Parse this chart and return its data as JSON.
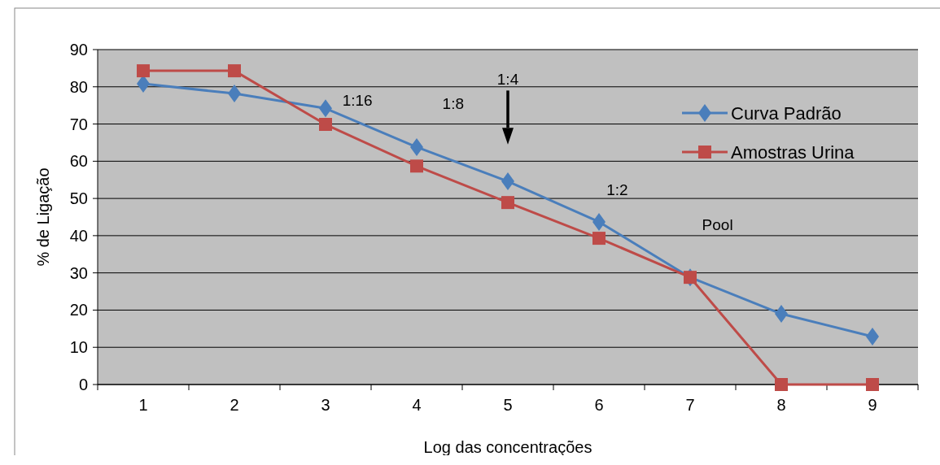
{
  "chart_data": {
    "type": "line",
    "xlabel": "Log das concentrações",
    "ylabel": "% de Ligação",
    "categories": [
      "1",
      "2",
      "3",
      "4",
      "5",
      "6",
      "7",
      "8",
      "9"
    ],
    "series": [
      {
        "name": "Curva Padrão",
        "color": "#4a7ebb",
        "marker": "diamond",
        "values": [
          80.8,
          78.2,
          74.2,
          63.8,
          54.6,
          43.7,
          28.8,
          19.0,
          12.9
        ]
      },
      {
        "name": "Amostras Urina",
        "color": "#be4b48",
        "marker": "square",
        "values": [
          84.3,
          84.3,
          69.9,
          58.7,
          48.9,
          39.3,
          28.8,
          0,
          0
        ]
      }
    ],
    "ylim": [
      0,
      90
    ],
    "yticks": [
      0,
      10,
      20,
      30,
      40,
      50,
      60,
      70,
      80,
      90
    ],
    "grid": "y",
    "legend": "top right",
    "annotations": [
      "1:16",
      "1:8",
      "1:4",
      "1:2",
      "Pool"
    ]
  }
}
